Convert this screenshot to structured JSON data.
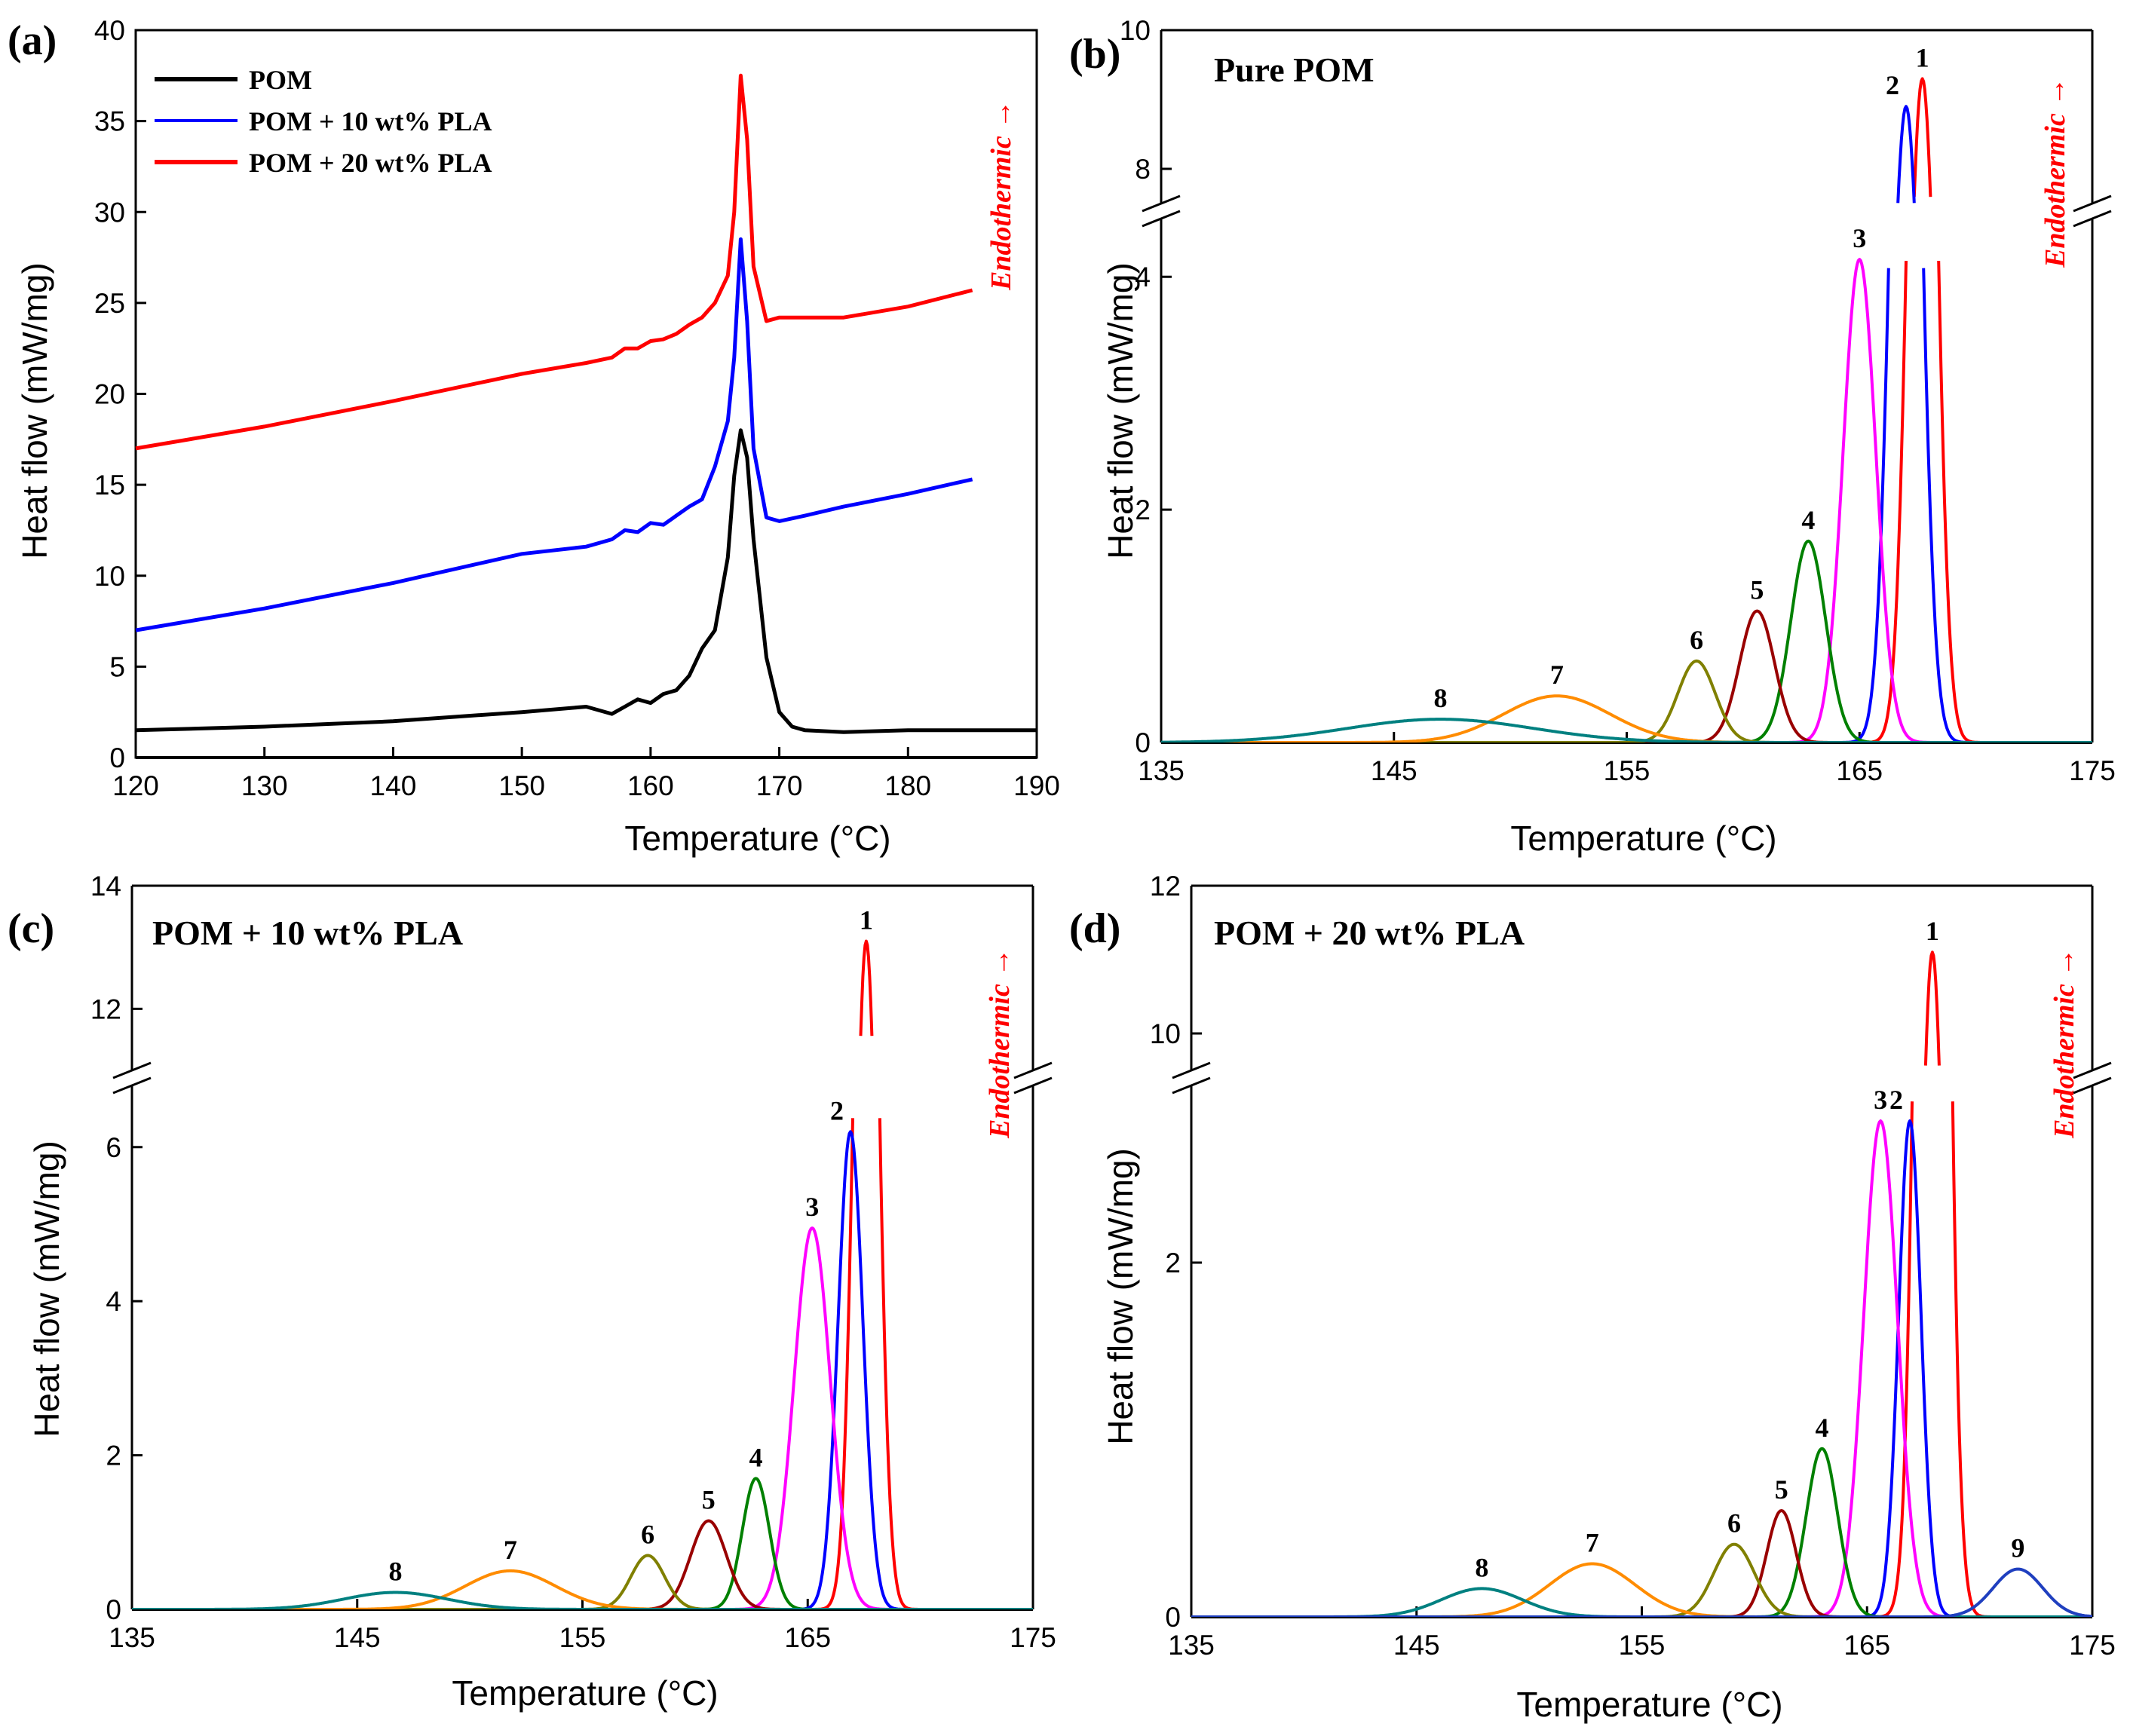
{
  "figure": {
    "xlabel": "Temperature (°C)",
    "ylabel": "Heat flow (mW/mg)",
    "endothermic": "Endothermic →"
  },
  "colors": {
    "POM": "#000000",
    "POM10": "#0000ff",
    "POM20": "#ff0000",
    "p1": "#ff0000",
    "p2": "#0000ff",
    "p3": "#ff00ff",
    "p4": "#008000",
    "p5": "#990000",
    "p6": "#808000",
    "p7": "#ff8c00",
    "p8": "#008080",
    "p9": "#1f3fbf"
  },
  "chart_data": [
    {
      "panel": "(a)",
      "type": "line",
      "title": "",
      "xlabel": "Temperature (°C)",
      "ylabel": "Heat flow (mW/mg)",
      "xlim": [
        120,
        190
      ],
      "ylim": [
        0,
        40
      ],
      "xticks": [
        120,
        130,
        140,
        150,
        160,
        170,
        180,
        190
      ],
      "yticks": [
        0,
        5,
        10,
        15,
        20,
        25,
        30,
        35,
        40
      ],
      "legend": [
        "POM",
        "POM + 10 wt% PLA",
        "POM + 20 wt% PLA"
      ],
      "series": [
        {
          "name": "POM",
          "color_key": "POM",
          "x": [
            120,
            130,
            140,
            150,
            155,
            157,
            158,
            159,
            160,
            161,
            162,
            163,
            164,
            165,
            166,
            166.5,
            167,
            167.5,
            168,
            169,
            170,
            171,
            172,
            175,
            180,
            190
          ],
          "y": [
            1.5,
            1.7,
            2.0,
            2.5,
            2.8,
            2.4,
            2.8,
            3.2,
            3.0,
            3.5,
            3.7,
            4.5,
            6.0,
            7.0,
            11.0,
            15.5,
            18.0,
            16.5,
            12.0,
            5.5,
            2.5,
            1.7,
            1.5,
            1.4,
            1.5,
            1.5
          ]
        },
        {
          "name": "POM + 10 wt% PLA",
          "color_key": "POM10",
          "x": [
            120,
            130,
            140,
            150,
            155,
            157,
            158,
            159,
            160,
            161,
            162,
            163,
            164,
            165,
            166,
            166.5,
            167,
            167.5,
            168,
            169,
            170,
            172,
            175,
            180,
            185
          ],
          "y": [
            7.0,
            8.2,
            9.6,
            11.2,
            11.6,
            12.0,
            12.5,
            12.4,
            12.9,
            12.8,
            13.3,
            13.8,
            14.2,
            16.0,
            18.5,
            22.0,
            28.5,
            24.0,
            17.0,
            13.2,
            13.0,
            13.3,
            13.8,
            14.5,
            15.3
          ]
        },
        {
          "name": "POM + 20 wt% PLA",
          "color_key": "POM20",
          "x": [
            120,
            130,
            140,
            150,
            155,
            157,
            158,
            159,
            160,
            161,
            162,
            163,
            164,
            165,
            166,
            166.5,
            167,
            167.5,
            168,
            169,
            170,
            172,
            175,
            180,
            185
          ],
          "y": [
            17.0,
            18.2,
            19.6,
            21.1,
            21.7,
            22.0,
            22.5,
            22.5,
            22.9,
            23.0,
            23.3,
            23.8,
            24.2,
            25.0,
            26.5,
            30.0,
            37.5,
            34.0,
            27.0,
            24.0,
            24.2,
            24.2,
            24.2,
            24.8,
            25.7
          ]
        }
      ]
    },
    {
      "panel": "(b)",
      "type": "line",
      "title": "Pure POM",
      "xlabel": "Temperature (°C)",
      "ylabel": "Heat flow (mW/mg)",
      "xlim": [
        135,
        175
      ],
      "ylim": [
        0,
        10
      ],
      "axis_break": [
        4.5,
        7.5
      ],
      "xticks": [
        135,
        145,
        155,
        165,
        175
      ],
      "yticks": [
        0,
        2,
        4,
        8,
        10
      ],
      "series": [
        {
          "name": "1",
          "color_key": "p1",
          "center": 167.7,
          "height": 9.3,
          "width": 0.55
        },
        {
          "name": "2",
          "color_key": "p2",
          "center": 167.0,
          "height": 8.9,
          "width": 0.6
        },
        {
          "name": "3",
          "color_key": "p3",
          "center": 165.0,
          "height": 4.15,
          "width": 0.7
        },
        {
          "name": "4",
          "color_key": "p4",
          "center": 162.8,
          "height": 1.73,
          "width": 0.75
        },
        {
          "name": "5",
          "color_key": "p5",
          "center": 160.6,
          "height": 1.13,
          "width": 0.75
        },
        {
          "name": "6",
          "color_key": "p6",
          "center": 158.0,
          "height": 0.7,
          "width": 0.8
        },
        {
          "name": "7",
          "color_key": "p7",
          "center": 152.0,
          "height": 0.4,
          "width": 2.3
        },
        {
          "name": "8",
          "color_key": "p8",
          "center": 147.0,
          "height": 0.2,
          "width": 4.0
        }
      ]
    },
    {
      "panel": "(c)",
      "type": "line",
      "title": "POM + 10 wt% PLA",
      "xlabel": "Temperature (°C)",
      "ylabel": "Heat flow (mW/mg)",
      "xlim": [
        135,
        175
      ],
      "ylim": [
        0,
        14
      ],
      "axis_break": [
        6.8,
        11.0
      ],
      "xticks": [
        135,
        145,
        155,
        165,
        175
      ],
      "yticks": [
        0,
        2,
        4,
        6,
        12,
        14
      ],
      "series": [
        {
          "name": "1",
          "color_key": "p1",
          "center": 167.6,
          "height": 13.1,
          "width": 0.5
        },
        {
          "name": "2",
          "color_key": "p2",
          "center": 166.9,
          "height": 6.2,
          "width": 0.55
        },
        {
          "name": "3",
          "color_key": "p3",
          "center": 165.2,
          "height": 4.95,
          "width": 0.8
        },
        {
          "name": "4",
          "color_key": "p4",
          "center": 162.7,
          "height": 1.7,
          "width": 0.6
        },
        {
          "name": "5",
          "color_key": "p5",
          "center": 160.6,
          "height": 1.15,
          "width": 0.8
        },
        {
          "name": "6",
          "color_key": "p6",
          "center": 157.9,
          "height": 0.7,
          "width": 0.75
        },
        {
          "name": "7",
          "color_key": "p7",
          "center": 151.8,
          "height": 0.5,
          "width": 2.0
        },
        {
          "name": "8",
          "color_key": "p8",
          "center": 146.7,
          "height": 0.22,
          "width": 2.3
        }
      ]
    },
    {
      "panel": "(d)",
      "type": "line",
      "title": "POM + 20 wt% PLA",
      "xlabel": "Temperature (°C)",
      "ylabel": "Heat flow (mW/mg)",
      "xlim": [
        135,
        175
      ],
      "ylim": [
        0,
        12
      ],
      "axis_break": [
        3.0,
        9.5
      ],
      "xticks": [
        135,
        145,
        155,
        165,
        175
      ],
      "yticks": [
        0,
        2,
        10,
        12
      ],
      "series": [
        {
          "name": "1",
          "color_key": "p1",
          "center": 167.9,
          "height": 11.1,
          "width": 0.55
        },
        {
          "name": "2",
          "color_key": "p2",
          "center": 166.9,
          "height": 2.8,
          "width": 0.5
        },
        {
          "name": "3",
          "color_key": "p3",
          "center": 165.6,
          "height": 2.8,
          "width": 0.75
        },
        {
          "name": "4",
          "color_key": "p4",
          "center": 163.0,
          "height": 0.95,
          "width": 0.7
        },
        {
          "name": "5",
          "color_key": "p5",
          "center": 161.2,
          "height": 0.6,
          "width": 0.65
        },
        {
          "name": "6",
          "color_key": "p6",
          "center": 159.1,
          "height": 0.41,
          "width": 0.9
        },
        {
          "name": "7",
          "color_key": "p7",
          "center": 152.8,
          "height": 0.3,
          "width": 1.9
        },
        {
          "name": "8",
          "color_key": "p8",
          "center": 147.9,
          "height": 0.16,
          "width": 1.8
        },
        {
          "name": "9",
          "color_key": "p9",
          "center": 171.7,
          "height": 0.27,
          "width": 1.1
        }
      ]
    }
  ]
}
